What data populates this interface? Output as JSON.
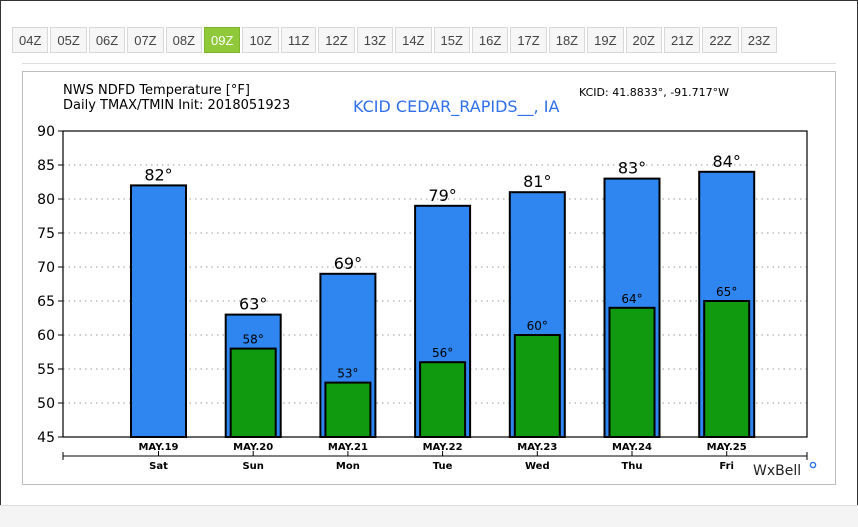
{
  "tabs": [
    "04Z",
    "05Z",
    "06Z",
    "07Z",
    "08Z",
    "09Z",
    "10Z",
    "11Z",
    "12Z",
    "13Z",
    "14Z",
    "15Z",
    "16Z",
    "17Z",
    "18Z",
    "19Z",
    "20Z",
    "21Z",
    "22Z",
    "23Z"
  ],
  "active_tab": "09Z",
  "header": {
    "line1": "NWS NDFD Temperature [°F]",
    "line2": "Daily TMAX/TMIN Init: 2018051923",
    "station": "KCID CEDAR_RAPIDS__, IA",
    "coords": "KCID: 41.8833°, -91.717°W"
  },
  "brand": "WxBell",
  "chart_data": {
    "type": "bar",
    "categories": [
      "MAY.19",
      "MAY.20",
      "MAY.21",
      "MAY.22",
      "MAY.23",
      "MAY.24",
      "MAY.25"
    ],
    "days": [
      "Sat",
      "Sun",
      "Mon",
      "Tue",
      "Wed",
      "Thu",
      "Fri"
    ],
    "series": [
      {
        "name": "TMAX",
        "values": [
          82,
          63,
          69,
          79,
          81,
          83,
          84
        ],
        "labels": [
          "82°",
          "63°",
          "69°",
          "79°",
          "81°",
          "83°",
          "84°"
        ]
      },
      {
        "name": "TMIN",
        "values": [
          null,
          58,
          53,
          56,
          60,
          64,
          65
        ],
        "labels": [
          "",
          "58°",
          "53°",
          "56°",
          "60°",
          "64°",
          "65°"
        ]
      }
    ],
    "ylim": [
      45,
      90
    ],
    "yticks": [
      45,
      50,
      55,
      60,
      65,
      70,
      75,
      80,
      85,
      90
    ],
    "grid": true,
    "colors": {
      "tmax": "#2f86f0",
      "tmin": "#109a10"
    }
  }
}
